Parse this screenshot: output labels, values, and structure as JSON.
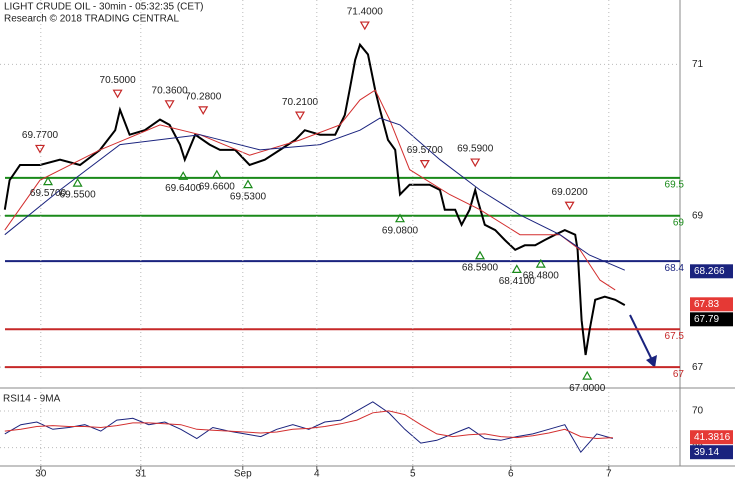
{
  "chart_data": [
    {
      "type": "line",
      "title": "LIGHT CRUDE OIL - 30min - 05:32:35 (CET)",
      "subtitle": "Research © 2018 TRADING CENTRAL",
      "xlim": [
        -0.6,
        84.4
      ],
      "ylim": [
        66.83,
        71.85
      ],
      "yticks": [
        67,
        69,
        71
      ],
      "grid": true,
      "series": [
        {
          "color": "#000000",
          "x": [
            0,
            0.6,
            1.9,
            4.4,
            6.9,
            9.4,
            11.9,
            13.8,
            14.4,
            15.6,
            17.5,
            19.4,
            20.6,
            21.9,
            22.5,
            23.8,
            25.6,
            26.9,
            28.8,
            30.6,
            32.5,
            34.4,
            36.3,
            37.5,
            39.4,
            41.3,
            42.5,
            43.1,
            43.8,
            44.4,
            45.4,
            46.3,
            46.9,
            47.9,
            48.8,
            49.4,
            50.6,
            51.9,
            53.1,
            54.4,
            55.0,
            56.3,
            57.1,
            58.1,
            58.8,
            59.1,
            60.0,
            61.3,
            62.5,
            63.8,
            65.0,
            66.3,
            67.5,
            68.8,
            70.0,
            71.3,
            71.6,
            72.1,
            72.6,
            73.1,
            73.8,
            75.0,
            76.3,
            77.5
          ],
          "values": [
            69.08,
            69.47,
            69.67,
            69.67,
            69.74,
            69.67,
            69.87,
            70.13,
            70.4,
            70.07,
            70.13,
            70.27,
            70.2,
            69.94,
            69.74,
            70.07,
            69.94,
            69.87,
            69.87,
            69.67,
            69.74,
            69.87,
            70.0,
            70.13,
            70.07,
            70.07,
            70.33,
            70.66,
            71.06,
            71.26,
            71.13,
            70.66,
            70.4,
            70.0,
            69.87,
            69.28,
            69.41,
            69.41,
            69.41,
            69.34,
            69.08,
            69.08,
            68.88,
            69.08,
            69.34,
            69.21,
            68.88,
            68.81,
            68.68,
            68.55,
            68.61,
            68.61,
            68.68,
            68.75,
            68.81,
            68.75,
            68.55,
            67.62,
            67.16,
            67.49,
            67.89,
            67.93,
            67.89,
            67.82
          ]
        },
        {
          "color": "#d32f2f",
          "x": [
            0,
            4.4,
            11.9,
            19.4,
            24.4,
            30.6,
            36.9,
            41.9,
            44.4,
            46.3,
            48.1,
            50.6,
            55.6,
            59.4,
            64.4,
            69.4,
            71.9,
            74.4,
            76.3
          ],
          "values": [
            68.81,
            69.47,
            69.87,
            70.2,
            70.07,
            69.8,
            70.0,
            70.2,
            70.53,
            70.66,
            70.27,
            69.61,
            69.28,
            69.08,
            68.75,
            68.75,
            68.55,
            68.15,
            68.02
          ]
        },
        {
          "color": "#1a237e",
          "x": [
            0,
            6.9,
            14.4,
            24.4,
            31.9,
            39.4,
            44.4,
            46.9,
            49.4,
            54.4,
            59.4,
            64.4,
            69.4,
            73.1,
            77.5
          ],
          "values": [
            68.75,
            69.34,
            69.94,
            70.07,
            69.87,
            69.94,
            70.13,
            70.29,
            70.2,
            69.74,
            69.34,
            69.01,
            68.75,
            68.48,
            68.28
          ]
        }
      ],
      "levels": [
        {
          "value": 69.5,
          "color": "#1a8a1a"
        },
        {
          "value": 69,
          "color": "#1a8a1a"
        },
        {
          "value": 68.4,
          "color": "#1a237e"
        },
        {
          "value": 67.5,
          "color": "#c62828"
        },
        {
          "value": 67,
          "color": "#c62828"
        }
      ],
      "highs": [
        {
          "x": 4.4,
          "value": 69.77,
          "label": "69.7700"
        },
        {
          "x": 14.1,
          "value": 70.5,
          "label": "70.5000"
        },
        {
          "x": 20.6,
          "value": 70.36,
          "label": "70.3600"
        },
        {
          "x": 24.8,
          "value": 70.28,
          "label": "70.2800"
        },
        {
          "x": 36.9,
          "value": 70.21,
          "label": "70.2100"
        },
        {
          "x": 45,
          "value": 71.4,
          "label": "71.4000"
        },
        {
          "x": 52.5,
          "value": 69.57,
          "label": "69.5700"
        },
        {
          "x": 58.8,
          "value": 69.59,
          "label": "69.5900"
        },
        {
          "x": 70.6,
          "value": 69.02,
          "label": "69.0200"
        }
      ],
      "lows": [
        {
          "x": 5.4,
          "value": 69.57,
          "label": "69.5700"
        },
        {
          "x": 9.1,
          "value": 69.55,
          "label": "69.5500"
        },
        {
          "x": 22.3,
          "value": 69.64,
          "label": "69.6400"
        },
        {
          "x": 26.5,
          "value": 69.66,
          "label": "69.6600"
        },
        {
          "x": 30.4,
          "value": 69.53,
          "label": "69.5300"
        },
        {
          "x": 49.4,
          "value": 69.08,
          "label": "69.0800"
        },
        {
          "x": 59.4,
          "value": 68.59,
          "label": "68.5900"
        },
        {
          "x": 64,
          "value": 68.41,
          "label": "68.4100"
        },
        {
          "x": 67,
          "value": 68.48,
          "label": "68.4800"
        },
        {
          "x": 72.8,
          "value": 67,
          "label": "67.0000"
        }
      ],
      "price_tags": [
        {
          "value": 68.266,
          "color": "#1a237e"
        },
        {
          "value": 67.83,
          "color": "#e53935"
        },
        {
          "value": 67.79,
          "color": "#000000"
        }
      ]
    },
    {
      "type": "line",
      "title": "RSI14 - 9MA",
      "xlim": [
        -0.6,
        84.4
      ],
      "ylim": [
        10,
        95
      ],
      "yticks": [
        30,
        70
      ],
      "grid": true,
      "xticks": [
        {
          "value": 4.5,
          "label": "30"
        },
        {
          "value": 17,
          "label": "31"
        },
        {
          "value": 29.75,
          "label": "Sep"
        },
        {
          "value": 39,
          "label": "4"
        },
        {
          "value": 51,
          "label": "5"
        },
        {
          "value": 63.25,
          "label": "6"
        },
        {
          "value": 75.5,
          "label": "7"
        }
      ],
      "series": [
        {
          "color": "#1a237e",
          "x": [
            0,
            2,
            4,
            6,
            8,
            10,
            12,
            14,
            16,
            18,
            20,
            22,
            24,
            26,
            28,
            30,
            32,
            34,
            36,
            38,
            40,
            42,
            44,
            46,
            48,
            50,
            52,
            54,
            56,
            58,
            60,
            62,
            64,
            66,
            68,
            70,
            72,
            74,
            76
          ],
          "values": [
            45,
            55,
            58,
            50,
            52,
            55,
            48,
            60,
            62,
            55,
            58,
            50,
            40,
            52,
            48,
            45,
            42,
            50,
            55,
            50,
            58,
            60,
            70,
            80,
            68,
            50,
            35,
            38,
            45,
            52,
            40,
            38,
            42,
            45,
            50,
            55,
            25,
            45,
            40
          ]
        },
        {
          "color": "#d32f2f",
          "x": [
            0,
            2,
            4,
            6,
            8,
            10,
            12,
            14,
            16,
            18,
            20,
            22,
            24,
            26,
            28,
            30,
            32,
            34,
            36,
            38,
            40,
            42,
            44,
            46,
            48,
            50,
            52,
            54,
            56,
            58,
            60,
            62,
            64,
            66,
            68,
            70,
            72,
            74,
            76
          ],
          "values": [
            48,
            50,
            53,
            54,
            53,
            53,
            52,
            54,
            57,
            57,
            56,
            55,
            50,
            49,
            48,
            47,
            46,
            47,
            50,
            51,
            53,
            56,
            60,
            68,
            70,
            66,
            55,
            45,
            42,
            44,
            45,
            42,
            41,
            43,
            46,
            50,
            42,
            40,
            41
          ]
        }
      ],
      "price_tags": [
        {
          "value": 41.3816,
          "color": "#e53935"
        },
        {
          "value": 39.14,
          "color": "#1a237e"
        }
      ]
    }
  ]
}
